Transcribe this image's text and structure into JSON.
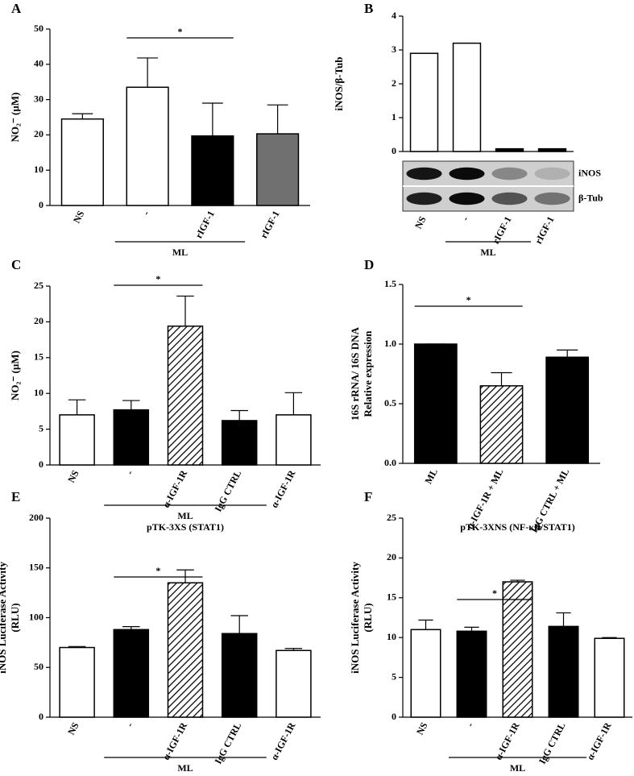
{
  "chart_data": [
    {
      "type": "bar",
      "label": "A",
      "ylabel": [
        "NO₂⁻ (µM)"
      ],
      "categories": [
        "NS",
        "-",
        "rIGF-1",
        "rIGF-1"
      ],
      "values": [
        24.5,
        33.5,
        19.7,
        20.3
      ],
      "errors": [
        1.5,
        8.3,
        9.3,
        8.2
      ],
      "colors": [
        "#ffffff",
        "#ffffff",
        "#000000",
        "#707070"
      ],
      "ylim": [
        0,
        50
      ],
      "yticks": [
        0,
        10,
        20,
        30,
        40,
        50
      ],
      "group_label": "ML",
      "significance_label": "*"
    },
    {
      "type": "bar",
      "label": "B",
      "ylabel": [
        "iNOS/β-Tub"
      ],
      "categories": [
        "NS",
        "-",
        "rIGF-1",
        "rIGF-1"
      ],
      "values": [
        2.9,
        3.2,
        0.08,
        0.08
      ],
      "colors": [
        "#ffffff",
        "#ffffff",
        "#000000",
        "#000000"
      ],
      "ylim": [
        0,
        4
      ],
      "yticks": [
        0,
        1,
        2,
        3,
        4
      ],
      "group_label": "ML",
      "blot_labels": [
        "iNOS",
        "β-Tub"
      ]
    },
    {
      "type": "bar",
      "label": "C",
      "ylabel": [
        "NO₂⁻ (µM)"
      ],
      "categories": [
        "NS",
        "-",
        "α-IGF-1R",
        "IgG CTRL",
        "α-IGF-1R"
      ],
      "values": [
        7.0,
        7.7,
        19.4,
        6.2,
        7.0
      ],
      "errors": [
        2.1,
        1.3,
        4.2,
        1.4,
        3.1
      ],
      "colors": [
        "#ffffff",
        "#000000",
        "hatch",
        "#000000",
        "#ffffff"
      ],
      "ylim": [
        0,
        25
      ],
      "yticks": [
        0,
        5,
        10,
        15,
        20,
        25
      ],
      "group_label": "ML",
      "significance_label": "*"
    },
    {
      "type": "bar",
      "label": "D",
      "ylabel": [
        "16S rRNA/ 16S DNA",
        "Relative expression"
      ],
      "categories": [
        "ML",
        "α-IGF-1R + ML",
        "IgG CTRL + ML"
      ],
      "values": [
        1.0,
        0.65,
        0.89
      ],
      "errors": [
        0,
        0.11,
        0.06
      ],
      "colors": [
        "#000000",
        "hatch",
        "#000000"
      ],
      "ylim": [
        0,
        1.5
      ],
      "yticks": [
        {
          "value": 0,
          "label": "0.0"
        },
        0.5,
        {
          "value": 1,
          "label": "1.0"
        },
        1.5
      ],
      "significance_label": "*"
    },
    {
      "type": "bar",
      "label": "E",
      "subtitle": "pTK-3XS (STAT1)",
      "ylabel": [
        "iNOS Luciferase Activity",
        "(RLU)"
      ],
      "categories": [
        "NS",
        "-",
        "α-IGF-1R",
        "IgG CTRL",
        "α-IGF-1R"
      ],
      "values": [
        70,
        88,
        135,
        84,
        67
      ],
      "errors": [
        1,
        3,
        13,
        18,
        2
      ],
      "colors": [
        "#ffffff",
        "#000000",
        "hatch",
        "#000000",
        "#ffffff"
      ],
      "ylim": [
        0,
        200
      ],
      "yticks": [
        0,
        50,
        100,
        150,
        200
      ],
      "group_label": "ML",
      "significance_label": "*"
    },
    {
      "type": "bar",
      "label": "F",
      "subtitle": "pTK-3XNS (NF-κB/STAT1)",
      "ylabel": [
        "iNOS Luciferase Activity",
        "(RLU)"
      ],
      "categories": [
        "NS",
        "-",
        "α-IGF-1R",
        "IgG CTRL",
        "α-IGF-1R"
      ],
      "values": [
        11.0,
        10.8,
        17.0,
        11.4,
        9.9
      ],
      "errors": [
        1.2,
        0.5,
        0.2,
        1.7,
        0.1
      ],
      "colors": [
        "#ffffff",
        "#000000",
        "hatch",
        "#000000",
        "#ffffff"
      ],
      "ylim": [
        0,
        25
      ],
      "yticks": [
        0,
        5,
        10,
        15,
        20,
        25
      ],
      "group_label": "ML",
      "significance_label": "*"
    }
  ]
}
